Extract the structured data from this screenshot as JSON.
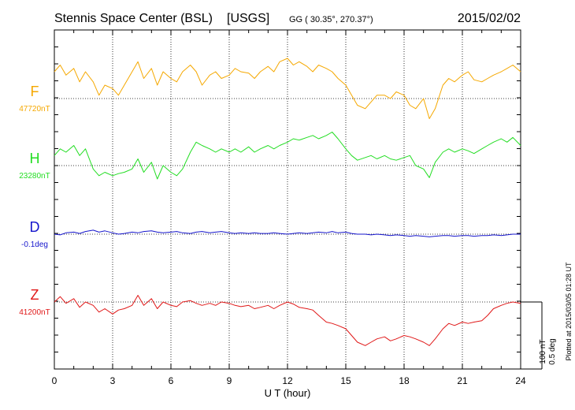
{
  "header": {
    "station": "Stennis Space Center (BSL)",
    "network": "[USGS]",
    "coords": "GG ( 30.35°, 270.37°)",
    "date": "2015/02/02"
  },
  "side_note": "Plotted at 2015/03/05 01:28 UT",
  "scale_bar": {
    "line1": "100 nT",
    "line2": "0.5 deg"
  },
  "chart_data": {
    "type": "line",
    "xlabel": "U T (hour)",
    "xlim": [
      0,
      24
    ],
    "xticks": [
      "0",
      "3",
      "6",
      "9",
      "12",
      "15",
      "18",
      "21",
      "24"
    ],
    "grid": true,
    "series": [
      {
        "name": "F",
        "baseline_label": "47720nT",
        "color": "#f5a800",
        "unit": "nT",
        "x": [
          0,
          0.3,
          0.6,
          1,
          1.3,
          1.6,
          2,
          2.3,
          2.6,
          3,
          3.3,
          3.6,
          4,
          4.3,
          4.6,
          5,
          5.3,
          5.6,
          6,
          6.3,
          6.6,
          7,
          7.3,
          7.6,
          8,
          8.3,
          8.6,
          9,
          9.3,
          9.6,
          10,
          10.3,
          10.6,
          11,
          11.3,
          11.6,
          12,
          12.3,
          12.6,
          13,
          13.3,
          13.6,
          14,
          14.3,
          14.6,
          15,
          15.3,
          15.6,
          16,
          16.3,
          16.6,
          17,
          17.3,
          17.6,
          18,
          18.3,
          18.6,
          19,
          19.3,
          19.6,
          20,
          20.3,
          20.6,
          21,
          21.3,
          21.6,
          22,
          22.3,
          22.6,
          23,
          23.3,
          23.6,
          24
        ],
        "y": [
          47760,
          47770,
          47755,
          47765,
          47745,
          47760,
          47745,
          47725,
          47740,
          47735,
          47725,
          47740,
          47760,
          47775,
          47750,
          47765,
          47740,
          47760,
          47750,
          47745,
          47760,
          47770,
          47760,
          47740,
          47755,
          47760,
          47750,
          47755,
          47765,
          47760,
          47758,
          47750,
          47760,
          47768,
          47760,
          47775,
          47780,
          47770,
          47775,
          47768,
          47760,
          47770,
          47765,
          47760,
          47750,
          47740,
          47725,
          47710,
          47705,
          47715,
          47725,
          47725,
          47720,
          47730,
          47725,
          47710,
          47705,
          47720,
          47690,
          47705,
          47740,
          47750,
          47745,
          47755,
          47760,
          47748,
          47745,
          47750,
          47755,
          47760,
          47765,
          47770,
          47760
        ]
      },
      {
        "name": "H",
        "baseline_label": "23280nT",
        "color": "#22dd22",
        "unit": "nT",
        "x": [
          0,
          0.3,
          0.6,
          1,
          1.3,
          1.6,
          2,
          2.3,
          2.6,
          3,
          3.3,
          3.6,
          4,
          4.3,
          4.6,
          5,
          5.3,
          5.6,
          6,
          6.3,
          6.6,
          7,
          7.3,
          7.6,
          8,
          8.3,
          8.6,
          9,
          9.3,
          9.6,
          10,
          10.3,
          10.6,
          11,
          11.3,
          11.6,
          12,
          12.3,
          12.6,
          13,
          13.3,
          13.6,
          14,
          14.3,
          14.6,
          15,
          15.3,
          15.6,
          16,
          16.3,
          16.6,
          17,
          17.3,
          17.6,
          18,
          18.3,
          18.6,
          19,
          19.3,
          19.6,
          20,
          20.3,
          20.6,
          21,
          21.3,
          21.6,
          22,
          22.3,
          22.6,
          23,
          23.3,
          23.6,
          24
        ],
        "y": [
          23295,
          23305,
          23300,
          23310,
          23295,
          23305,
          23275,
          23265,
          23270,
          23265,
          23268,
          23270,
          23275,
          23290,
          23270,
          23285,
          23260,
          23280,
          23270,
          23265,
          23275,
          23300,
          23315,
          23310,
          23305,
          23300,
          23305,
          23300,
          23305,
          23300,
          23308,
          23300,
          23305,
          23310,
          23305,
          23310,
          23315,
          23320,
          23318,
          23322,
          23325,
          23320,
          23325,
          23330,
          23320,
          23305,
          23295,
          23288,
          23292,
          23295,
          23290,
          23295,
          23290,
          23288,
          23292,
          23295,
          23280,
          23275,
          23262,
          23285,
          23300,
          23305,
          23300,
          23305,
          23302,
          23298,
          23305,
          23310,
          23315,
          23320,
          23315,
          23322,
          23310
        ]
      },
      {
        "name": "D",
        "baseline_label": "-0.1deg",
        "color": "#1515cc",
        "unit": "deg",
        "x": [
          0,
          0.3,
          0.6,
          1,
          1.3,
          1.6,
          2,
          2.3,
          2.6,
          3,
          3.3,
          3.6,
          4,
          4.3,
          4.6,
          5,
          5.3,
          5.6,
          6,
          6.3,
          6.6,
          7,
          7.3,
          7.6,
          8,
          8.3,
          8.6,
          9,
          9.3,
          9.6,
          10,
          10.3,
          10.6,
          11,
          11.3,
          11.6,
          12,
          12.3,
          12.6,
          13,
          13.3,
          13.6,
          14,
          14.3,
          14.6,
          15,
          15.3,
          15.6,
          16,
          16.3,
          16.6,
          17,
          17.3,
          17.6,
          18,
          18.3,
          18.6,
          19,
          19.3,
          19.6,
          20,
          20.3,
          20.6,
          21,
          21.3,
          21.6,
          22,
          22.3,
          22.6,
          23,
          23.3,
          23.6,
          24
        ],
        "y": [
          -0.1,
          -0.105,
          -0.09,
          -0.085,
          -0.095,
          -0.08,
          -0.07,
          -0.085,
          -0.075,
          -0.09,
          -0.1,
          -0.095,
          -0.085,
          -0.09,
          -0.08,
          -0.075,
          -0.085,
          -0.09,
          -0.085,
          -0.08,
          -0.09,
          -0.095,
          -0.085,
          -0.08,
          -0.09,
          -0.085,
          -0.08,
          -0.09,
          -0.095,
          -0.09,
          -0.095,
          -0.09,
          -0.095,
          -0.095,
          -0.09,
          -0.095,
          -0.1,
          -0.095,
          -0.09,
          -0.095,
          -0.09,
          -0.085,
          -0.09,
          -0.08,
          -0.09,
          -0.085,
          -0.095,
          -0.1,
          -0.1,
          -0.105,
          -0.1,
          -0.105,
          -0.11,
          -0.105,
          -0.11,
          -0.115,
          -0.11,
          -0.115,
          -0.12,
          -0.115,
          -0.11,
          -0.11,
          -0.115,
          -0.11,
          -0.11,
          -0.115,
          -0.11,
          -0.11,
          -0.105,
          -0.11,
          -0.105,
          -0.1,
          -0.1
        ]
      },
      {
        "name": "Z",
        "baseline_label": "41200nT",
        "color": "#e01818",
        "unit": "nT",
        "x": [
          0,
          0.3,
          0.6,
          1,
          1.3,
          1.6,
          2,
          2.3,
          2.6,
          3,
          3.3,
          3.6,
          4,
          4.3,
          4.6,
          5,
          5.3,
          5.6,
          6,
          6.3,
          6.6,
          7,
          7.3,
          7.6,
          8,
          8.3,
          8.6,
          9,
          9.3,
          9.6,
          10,
          10.3,
          10.6,
          11,
          11.3,
          11.6,
          12,
          12.3,
          12.6,
          13,
          13.3,
          13.6,
          14,
          14.3,
          14.6,
          15,
          15.3,
          15.6,
          16,
          16.3,
          16.6,
          17,
          17.3,
          17.6,
          18,
          18.3,
          18.6,
          19,
          19.3,
          19.6,
          20,
          20.3,
          20.6,
          21,
          21.3,
          21.6,
          22,
          22.3,
          22.6,
          23,
          23.3,
          23.6,
          24
        ],
        "y": [
          41200,
          41208,
          41198,
          41205,
          41192,
          41200,
          41195,
          41185,
          41190,
          41182,
          41188,
          41190,
          41195,
          41210,
          41195,
          41205,
          41190,
          41200,
          41195,
          41193,
          41200,
          41202,
          41198,
          41195,
          41198,
          41195,
          41200,
          41198,
          41195,
          41193,
          41195,
          41190,
          41192,
          41195,
          41190,
          41195,
          41200,
          41197,
          41192,
          41190,
          41188,
          41180,
          41170,
          41168,
          41165,
          41160,
          41150,
          41140,
          41135,
          41140,
          41145,
          41148,
          41142,
          41145,
          41150,
          41148,
          41145,
          41140,
          41135,
          41145,
          41160,
          41168,
          41165,
          41170,
          41168,
          41170,
          41172,
          41180,
          41190,
          41195,
          41198,
          41200,
          41198
        ]
      }
    ]
  }
}
